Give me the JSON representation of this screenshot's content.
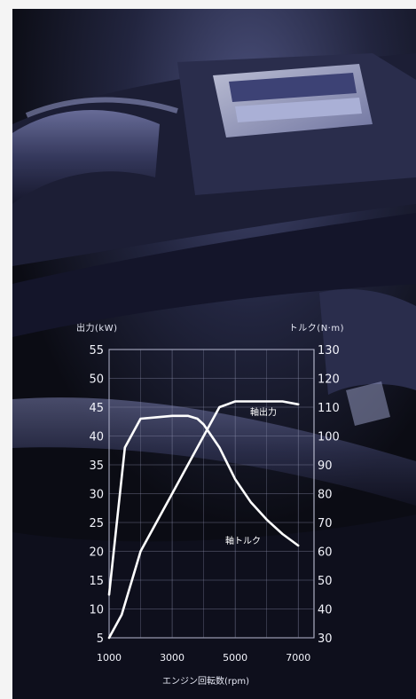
{
  "chart_data": {
    "type": "line",
    "title": "",
    "xlabel": "エンジン回転数(rpm)",
    "ylabel_left": "出力(kW)",
    "ylabel_right": "トルク(N·m)",
    "xlim": [
      1000,
      7500
    ],
    "ylim_left": [
      5,
      55
    ],
    "ylim_right": [
      30,
      130
    ],
    "x_ticks": [
      "1000",
      "3000",
      "5000",
      "7000"
    ],
    "y_ticks_left": [
      "55",
      "50",
      "45",
      "40",
      "35",
      "30",
      "25",
      "20",
      "15",
      "10",
      "5"
    ],
    "y_ticks_right": [
      "130",
      "120",
      "110",
      "100",
      "90",
      "80",
      "70",
      "60",
      "50",
      "40",
      "30"
    ],
    "grid": true,
    "series": [
      {
        "name": "軸出力",
        "axis": "left",
        "color": "#ffffff",
        "x": [
          1000,
          1400,
          2000,
          2500,
          3000,
          3500,
          4000,
          4500,
          5000,
          5500,
          6000,
          6500,
          7000
        ],
        "y": [
          5,
          9,
          20,
          25,
          30,
          35,
          40,
          45,
          46,
          46,
          46,
          46,
          45.5
        ]
      },
      {
        "name": "軸トルク",
        "axis": "right",
        "color": "#ffffff",
        "x": [
          1000,
          1500,
          2000,
          2500,
          3000,
          3500,
          3800,
          4000,
          4500,
          5000,
          5500,
          6000,
          6500,
          7000
        ],
        "y": [
          45,
          96,
          106,
          106.5,
          107,
          107,
          106,
          104,
          96,
          85,
          77,
          71,
          66,
          62
        ]
      }
    ]
  },
  "photo": {
    "description_icon": "engine-photo",
    "bg_color": "#0b0c14",
    "accent_color": "#3a4170"
  }
}
